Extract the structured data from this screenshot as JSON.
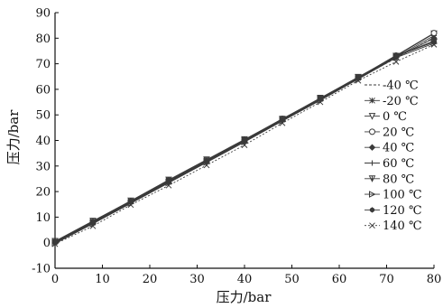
{
  "chart_data": {
    "type": "line",
    "title": "",
    "xlabel": "压力/bar",
    "ylabel": "压力/bar",
    "xlim": [
      0,
      80
    ],
    "ylim": [
      -10,
      90
    ],
    "xticks": [
      0,
      10,
      20,
      30,
      40,
      50,
      60,
      70,
      80
    ],
    "yticks": [
      -10,
      0,
      10,
      20,
      30,
      40,
      50,
      60,
      70,
      80,
      90
    ],
    "grid": false,
    "legend_position": "right",
    "x": [
      0,
      8,
      16,
      24,
      32,
      40,
      48,
      56,
      64,
      72,
      80
    ],
    "series": [
      {
        "name": "-40 ℃",
        "marker": "none",
        "dash": "3,2",
        "values": [
          0.2,
          8.0,
          16.0,
          24.2,
          32.1,
          40.0,
          48.0,
          56.0,
          64.3,
          72.2,
          80.3
        ]
      },
      {
        "name": "-20 ℃",
        "marker": "asterisk",
        "dash": "",
        "values": [
          0.4,
          8.3,
          16.3,
          24.3,
          32.3,
          40.1,
          48.2,
          56.3,
          64.5,
          72.6,
          81.0
        ]
      },
      {
        "name": "0 ℃",
        "marker": "triangle-down",
        "dash": "",
        "values": [
          0.6,
          8.5,
          16.4,
          24.6,
          32.5,
          40.4,
          48.4,
          56.6,
          64.8,
          73.0,
          81.8
        ]
      },
      {
        "name": "20 ℃",
        "marker": "circle",
        "dash": "",
        "values": [
          0.3,
          8.2,
          16.2,
          24.4,
          32.3,
          40.2,
          48.5,
          56.4,
          64.6,
          73.2,
          82.0
        ]
      },
      {
        "name": "40 ℃",
        "marker": "diamond",
        "dash": "",
        "values": [
          0.1,
          7.9,
          15.9,
          24.0,
          31.9,
          39.8,
          47.9,
          55.9,
          64.2,
          72.5,
          80.0
        ]
      },
      {
        "name": "60 ℃",
        "marker": "plus",
        "dash": "",
        "values": [
          -0.2,
          7.6,
          15.6,
          23.6,
          31.5,
          39.5,
          47.7,
          55.8,
          64.2,
          72.8,
          79.0
        ]
      },
      {
        "name": "80 ℃",
        "marker": "triangle-down-open",
        "dash": "",
        "values": [
          0.0,
          7.8,
          15.7,
          23.8,
          31.8,
          39.9,
          48.1,
          56.2,
          64.5,
          73.0,
          78.5
        ]
      },
      {
        "name": "100 ℃",
        "marker": "triangle-right",
        "dash": "",
        "values": [
          -0.3,
          7.4,
          15.4,
          23.4,
          31.4,
          39.4,
          47.6,
          55.7,
          64.0,
          72.4,
          78.0
        ]
      },
      {
        "name": "120 ℃",
        "marker": "star",
        "dash": "",
        "values": [
          0.2,
          8.1,
          16.1,
          24.5,
          32.2,
          40.3,
          48.3,
          56.5,
          64.6,
          73.3,
          78.6
        ]
      },
      {
        "name": "140 ℃",
        "marker": "x",
        "dash": "2,2",
        "values": [
          -0.5,
          6.5,
          14.8,
          22.4,
          30.3,
          38.2,
          46.8,
          55.0,
          63.4,
          70.8,
          77.5
        ]
      }
    ],
    "colors": {
      "axis": "#111111",
      "series": "#3a3a3a"
    }
  }
}
